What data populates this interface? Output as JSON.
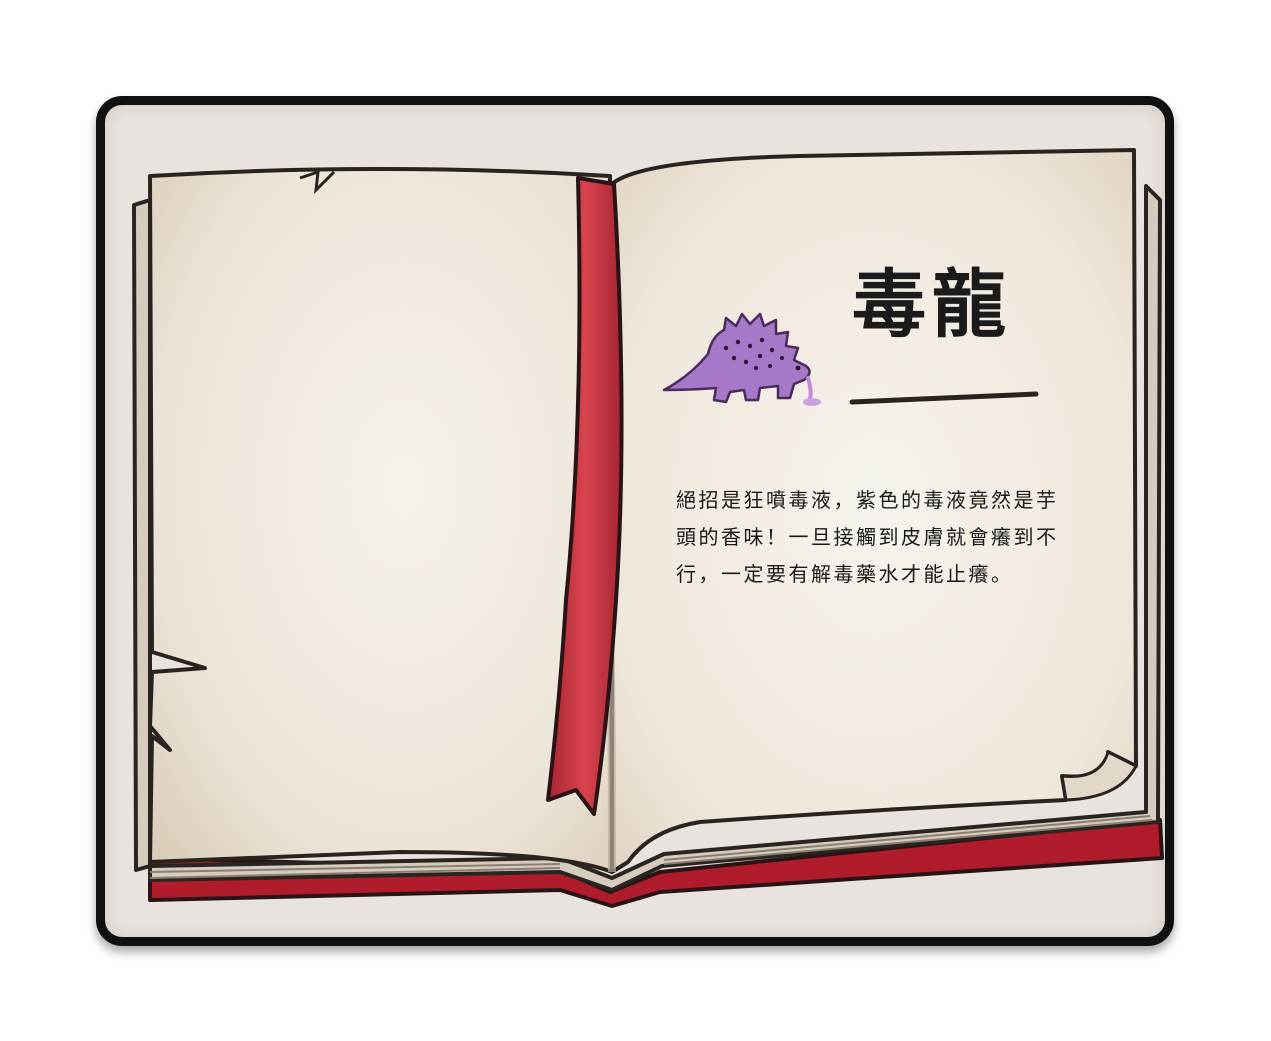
{
  "codex": {
    "entry_title": "毒龍",
    "entry_description": "絕招是狂噴毒液，紫色的毒液竟然是芋頭的香味！一旦接觸到皮膚就會癢到不行，一定要有解毒藥水才能止癢。",
    "creature_icon": "purple-spiky-dragon-icon"
  },
  "colors": {
    "panel_bg": "#e8e3df",
    "panel_border": "#111111",
    "page_paper": "#f1ebe2",
    "page_edge": "#cfc4b3",
    "bookmark_red": "#c6343f",
    "cover_red": "#b01c2b",
    "creature_purple": "#a678c8"
  }
}
